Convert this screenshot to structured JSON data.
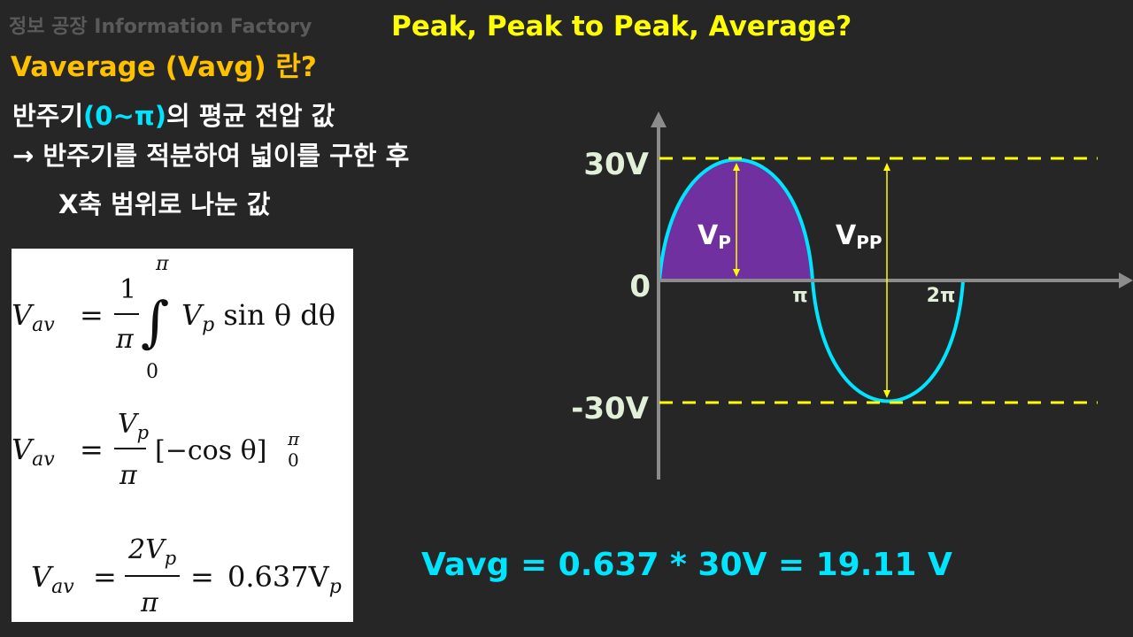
{
  "brand": "정보 공장 Information Factory",
  "headline": "Peak, Peak to Peak, Average?",
  "subtitle": "Vaverage (Vavg) 란?",
  "description": {
    "line1_pre": "반주기",
    "line1_hl": "(0~π)",
    "line1_post": "의 평균 전압 값",
    "line2": "→ 반주기를 적분하여 넓이를 구한 후",
    "line3": "X축 범위로 나눈 값"
  },
  "formulas": {
    "f1": {
      "lhs": "V",
      "lhs_sub": "av",
      "eq": "=",
      "num": "1",
      "den": "π",
      "upper": "π",
      "lower": "0",
      "body": "V",
      "body_sub": "p",
      "body_rest": " sin θ  dθ"
    },
    "f2": {
      "lhs": "V",
      "lhs_sub": "av",
      "eq": "=",
      "num": "V",
      "num_sub": "p",
      "den": "π",
      "body": "[−cos θ]",
      "sup": "π",
      "sub": "0"
    },
    "f3": {
      "lhs": "V",
      "lhs_sub": "av",
      "eq": "=",
      "num": "2V",
      "num_sub": "p",
      "den": "π",
      "eq2": "=",
      "rhs": "0.637V",
      "rhs_sub": "p"
    }
  },
  "graph": {
    "y_labels": {
      "top": "30V",
      "zero": "0",
      "bottom": "-30V"
    },
    "x_labels": {
      "pi": "π",
      "two_pi": "2π"
    },
    "vp_label": {
      "main": "V",
      "sub": "P"
    },
    "vpp_label": {
      "main": "V",
      "sub": "PP"
    }
  },
  "result": "Vavg = 0.637 * 30V = 19.11 V",
  "colors": {
    "accent_yellow": "#ffff00",
    "accent_orange": "#ffc000",
    "cyan": "#00e5ff",
    "fill_purple": "#7030a0",
    "axis_gray": "#8c8c8c",
    "background": "#262626"
  }
}
